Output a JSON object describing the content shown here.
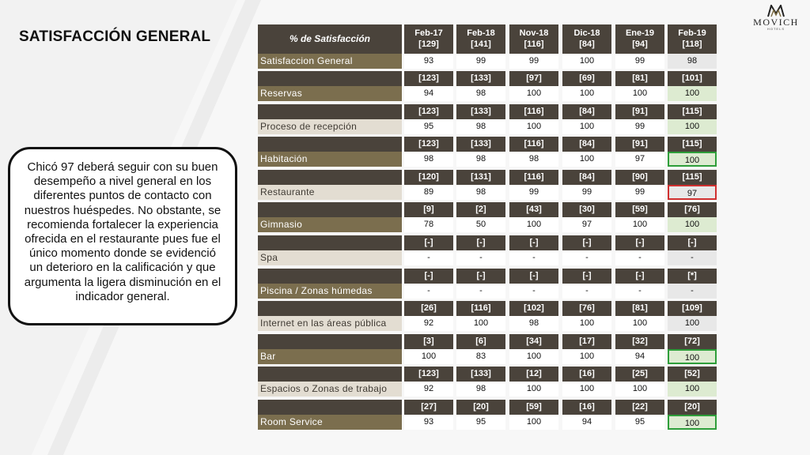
{
  "title": "SATISFACCIÓN GENERAL",
  "logo": {
    "name": "MOVICH",
    "sub": "HOTELS"
  },
  "callout": "Chicó 97 deberá seguir con su buen desempeño a nivel general en los diferentes puntos de contacto con nuestros huéspedes. No obstante, se recomienda fortalecer la experiencia ofrecida en el restaurante pues fue el único momento donde se evidenció un deterioro en la calificación y que argumenta la ligera disminución en el indicador general.",
  "table": {
    "header_label": "% de Satisfacción",
    "periods": [
      {
        "label": "Feb-17",
        "n": "[129]"
      },
      {
        "label": "Feb-18",
        "n": "[141]"
      },
      {
        "label": "Nov-18",
        "n": "[116]"
      },
      {
        "label": "Dic-18",
        "n": "[84]"
      },
      {
        "label": "Ene-19",
        "n": "[94]"
      },
      {
        "label": "Feb-19",
        "n": "[118]"
      }
    ],
    "first_row": {
      "label": "Satisfaccion General",
      "values": [
        "93",
        "99",
        "99",
        "100",
        "99",
        "98"
      ]
    },
    "rows": [
      {
        "label": "Reservas",
        "n": [
          "[123]",
          "[133]",
          "[97]",
          "[69]",
          "[81]",
          "[101]"
        ],
        "values": [
          "94",
          "98",
          "100",
          "100",
          "100",
          "100"
        ],
        "highlight": "green"
      },
      {
        "label": "Proceso de recepción",
        "n": [
          "[123]",
          "[133]",
          "[116]",
          "[84]",
          "[91]",
          "[115]"
        ],
        "values": [
          "95",
          "98",
          "100",
          "100",
          "99",
          "100"
        ],
        "highlight": "green"
      },
      {
        "label": "Habitación",
        "n": [
          "[123]",
          "[133]",
          "[116]",
          "[84]",
          "[91]",
          "[115]"
        ],
        "values": [
          "98",
          "98",
          "98",
          "100",
          "97",
          "100"
        ],
        "highlight": "boxg"
      },
      {
        "label": "Restaurante",
        "n": [
          "[120]",
          "[131]",
          "[116]",
          "[84]",
          "[90]",
          "[115]"
        ],
        "values": [
          "89",
          "98",
          "99",
          "99",
          "99",
          "97"
        ],
        "highlight": "boxr"
      },
      {
        "label": "Gimnasio",
        "n": [
          "[9]",
          "[2]",
          "[43]",
          "[30]",
          "[59]",
          "[76]"
        ],
        "values": [
          "78",
          "50",
          "100",
          "97",
          "100",
          "100"
        ],
        "highlight": "green"
      },
      {
        "label": "Spa",
        "n": [
          "[-]",
          "[-]",
          "[-]",
          "[-]",
          "[-]",
          "[-]"
        ],
        "values": [
          "-",
          "-",
          "-",
          "-",
          "-",
          "-"
        ],
        "highlight": "grey"
      },
      {
        "label": "Piscina / Zonas húmedas",
        "n": [
          "[-]",
          "[-]",
          "[-]",
          "[-]",
          "[-]",
          "[*]"
        ],
        "values": [
          "-",
          "-",
          "-",
          "-",
          "-",
          "-"
        ],
        "highlight": "grey"
      },
      {
        "label": "Internet en las áreas pública",
        "n": [
          "[26]",
          "[116]",
          "[102]",
          "[76]",
          "[81]",
          "[109]"
        ],
        "values": [
          "92",
          "100",
          "98",
          "100",
          "100",
          "100"
        ],
        "highlight": "grey"
      },
      {
        "label": "Bar",
        "n": [
          "[3]",
          "[6]",
          "[34]",
          "[17]",
          "[32]",
          "[72]"
        ],
        "values": [
          "100",
          "83",
          "100",
          "100",
          "94",
          "100"
        ],
        "highlight": "boxg"
      },
      {
        "label": "Espacios o Zonas de trabajo",
        "n": [
          "[123]",
          "[133]",
          "[12]",
          "[16]",
          "[25]",
          "[52]"
        ],
        "values": [
          "92",
          "98",
          "100",
          "100",
          "100",
          "100"
        ],
        "highlight": "green"
      },
      {
        "label": "Room Service",
        "n": [
          "[27]",
          "[20]",
          "[59]",
          "[16]",
          "[22]",
          "[20]"
        ],
        "values": [
          "93",
          "95",
          "100",
          "94",
          "95",
          "100"
        ],
        "highlight": "boxg"
      }
    ]
  }
}
